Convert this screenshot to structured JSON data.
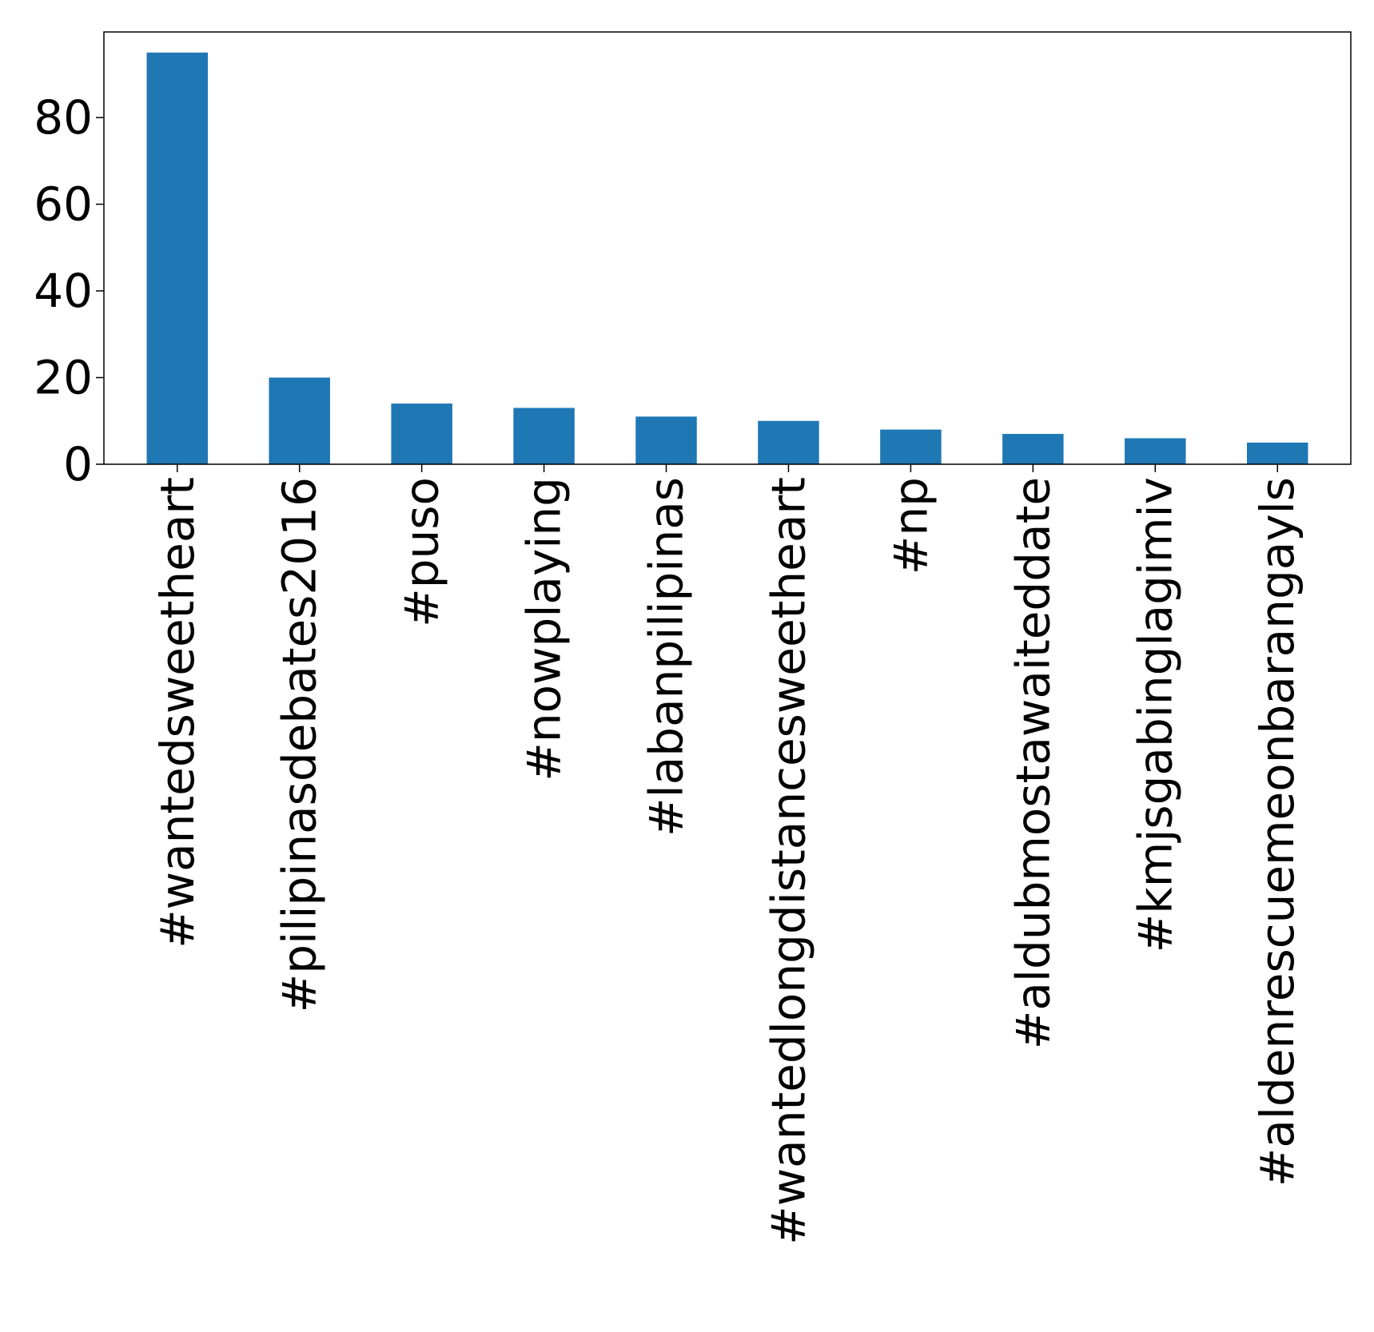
{
  "chart_data": {
    "type": "bar",
    "title": "",
    "xlabel": "",
    "ylabel": "",
    "categories": [
      "#wantedsweetheart",
      "#pilipinasdebates2016",
      "#puso",
      "#nowplaying",
      "#labanpilipinas",
      "#wantedlongdistancesweetheart",
      "#np",
      "#aldubmostawaiteddate",
      "#kmjsgabinglagimiv",
      "#aldenrescuemeonbarangayls"
    ],
    "values": [
      95,
      20,
      14,
      13,
      11,
      10,
      8,
      7,
      6,
      5
    ],
    "ylim": [
      0,
      99.75
    ],
    "yticks": [
      0,
      20,
      40,
      60,
      80
    ],
    "ytick_labels": [
      "0",
      "20",
      "40",
      "60",
      "80"
    ],
    "bar_color": "#1f77b4",
    "grid": false,
    "legend": "none"
  }
}
